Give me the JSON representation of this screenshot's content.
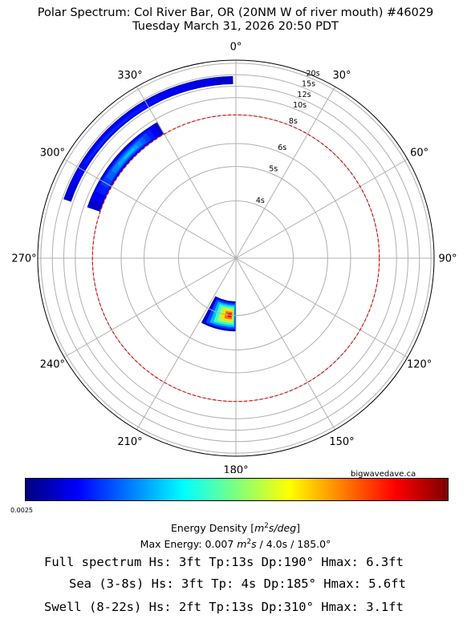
{
  "title": "Polar Spectrum: Col River Bar, OR (20NM W of river mouth) #46029",
  "subtitle": "Tuesday March 31, 2026 20:50 PDT",
  "credit": "bigwavedave.ca",
  "colorbar": {
    "min_label": "0.0025",
    "label_prefix": "Energy Density [",
    "label_unit_base": "m",
    "label_unit_exp": "2",
    "label_unit_rest": "s/deg",
    "label_suffix": "]",
    "colors": [
      "#00007f",
      "#0000ff",
      "#007fff",
      "#00ffff",
      "#7fff7f",
      "#ffff00",
      "#ff7f00",
      "#ff0000",
      "#7f0000"
    ]
  },
  "max_energy": {
    "prefix": "Max Energy: 0.007 ",
    "unit_base": "m",
    "unit_exp": "2",
    "unit_rest": "s",
    "suffix": "  /  4.0s  /  185.0°"
  },
  "stats": {
    "full": "Full spectrum Hs: 3ft Tp:13s Dp:190° Hmax: 6.3ft",
    "sea": "Sea (3-8s) Hs: 3ft Tp: 4s Dp:185° Hmax: 5.6ft",
    "swell": "Swell (8-22s) Hs: 2ft Tp:13s Dp:310° Hmax: 3.1ft"
  },
  "chart_data": {
    "type": "polar-heatmap",
    "angular_axis": {
      "zero": "north",
      "direction": "clockwise",
      "unit": "deg",
      "ticks": [
        0,
        30,
        60,
        90,
        120,
        150,
        180,
        210,
        240,
        270,
        300,
        330
      ],
      "tick_labels": [
        "0°",
        "30°",
        "60°",
        "90°",
        "120°",
        "150°",
        "180°",
        "210°",
        "240°",
        "270°",
        "300°",
        "330°"
      ]
    },
    "radial_axis": {
      "unit": "period (s)",
      "scale": "frequency (1/period)",
      "ticks": [
        4,
        5,
        6,
        8,
        10,
        12,
        15,
        20
      ],
      "tick_labels": [
        "4s",
        "5s",
        "6s",
        "8s",
        "10s",
        "12s",
        "15s",
        "20s"
      ],
      "range_period_min": 3.0,
      "range_period_max": 22.0
    },
    "grid": true,
    "sea_swell_boundary_period": 8,
    "energy_blobs": [
      {
        "name": "",
        "dir_from": 180,
        "dir_to": 208,
        "period_min": 3.7,
        "period_max": 4.4,
        "peak_period": 4.0,
        "peak_dir": 185,
        "peak_level": 1.0
      },
      {
        "name": "",
        "dir_from": 289,
        "dir_to": 330,
        "period_min": 8.0,
        "period_max": 9.5,
        "peak_period": 8.6,
        "peak_dir": 315,
        "peak_level": 0.3
      },
      {
        "name": "",
        "dir_from": 289,
        "dir_to": 359,
        "period_min": 12.5,
        "period_max": 14.5,
        "peak_period": 13.0,
        "peak_dir": 310,
        "peak_level": 0.12
      }
    ]
  }
}
